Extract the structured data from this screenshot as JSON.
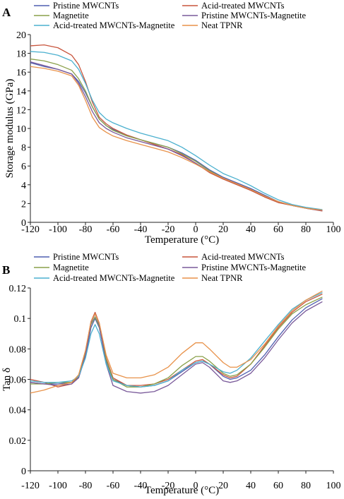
{
  "chart_data": [
    {
      "type": "line",
      "panel_label": "A",
      "xlabel": "Temperature (°C)",
      "ylabel": "Storage modulus (GPa)",
      "xlim": [
        -120,
        100
      ],
      "ylim": [
        0,
        20
      ],
      "xticks": [
        -120,
        -100,
        -80,
        -60,
        -40,
        -20,
        0,
        20,
        40,
        60,
        80,
        100
      ],
      "yticks": [
        0,
        2,
        4,
        6,
        8,
        10,
        12,
        14,
        16,
        18,
        20
      ],
      "grid": false,
      "legend_position": "top",
      "series": [
        {
          "name": "Pristine MWCNTs",
          "color": "#4f5fb0",
          "x": [
            -120,
            -110,
            -100,
            -90,
            -85,
            -80,
            -75,
            -70,
            -65,
            -60,
            -50,
            -40,
            -30,
            -20,
            -10,
            0,
            10,
            20,
            30,
            40,
            50,
            60,
            70,
            80,
            92
          ],
          "y": [
            17.0,
            16.6,
            16.3,
            15.8,
            15.0,
            13.8,
            12.3,
            11.0,
            10.3,
            9.9,
            9.3,
            8.8,
            8.4,
            8.0,
            7.4,
            6.6,
            5.6,
            4.8,
            4.2,
            3.6,
            2.9,
            2.2,
            1.8,
            1.5,
            1.25
          ]
        },
        {
          "name": "Acid-treated MWCNTs",
          "color": "#c8553d",
          "x": [
            -120,
            -110,
            -100,
            -90,
            -85,
            -80,
            -75,
            -70,
            -65,
            -60,
            -50,
            -40,
            -30,
            -20,
            -10,
            0,
            10,
            20,
            30,
            40,
            50,
            60,
            70,
            80,
            92
          ],
          "y": [
            18.8,
            18.9,
            18.6,
            17.8,
            16.8,
            15.0,
            12.8,
            11.2,
            10.5,
            10.0,
            9.3,
            8.8,
            8.3,
            7.8,
            7.2,
            6.3,
            5.3,
            4.6,
            4.0,
            3.4,
            2.7,
            2.1,
            1.8,
            1.5,
            1.2
          ]
        },
        {
          "name": "Magnetite",
          "color": "#8aa04a",
          "x": [
            -120,
            -110,
            -100,
            -90,
            -85,
            -80,
            -75,
            -70,
            -65,
            -60,
            -50,
            -40,
            -30,
            -20,
            -10,
            0,
            10,
            20,
            30,
            40,
            50,
            60,
            70,
            80,
            92
          ],
          "y": [
            17.4,
            17.2,
            16.8,
            16.2,
            15.3,
            14.0,
            12.3,
            11.0,
            10.3,
            9.8,
            9.2,
            8.8,
            8.4,
            8.0,
            7.3,
            6.5,
            5.5,
            4.7,
            4.1,
            3.5,
            2.8,
            2.2,
            1.8,
            1.5,
            1.3
          ]
        },
        {
          "name": "Pristine MWCNTs-Magnetite",
          "color": "#7a5a9a",
          "x": [
            -120,
            -110,
            -100,
            -90,
            -85,
            -80,
            -75,
            -70,
            -65,
            -60,
            -50,
            -40,
            -30,
            -20,
            -10,
            0,
            10,
            20,
            30,
            40,
            50,
            60,
            70,
            80,
            92
          ],
          "y": [
            17.1,
            16.7,
            16.3,
            15.8,
            14.8,
            13.4,
            11.8,
            10.6,
            10.0,
            9.6,
            9.0,
            8.6,
            8.2,
            7.8,
            7.1,
            6.3,
            5.4,
            4.7,
            4.1,
            3.5,
            2.8,
            2.2,
            1.8,
            1.5,
            1.25
          ]
        },
        {
          "name": "Acid-treated MWCNTs-Magnetite",
          "color": "#4bb0cf",
          "x": [
            -120,
            -110,
            -100,
            -90,
            -85,
            -80,
            -75,
            -70,
            -65,
            -60,
            -50,
            -40,
            -30,
            -20,
            -10,
            0,
            10,
            20,
            30,
            40,
            50,
            60,
            70,
            80,
            92
          ],
          "y": [
            18.2,
            18.1,
            17.8,
            17.2,
            16.3,
            14.8,
            13.0,
            11.7,
            11.0,
            10.6,
            10.0,
            9.5,
            9.1,
            8.7,
            8.0,
            7.1,
            6.1,
            5.2,
            4.6,
            3.9,
            3.1,
            2.4,
            1.9,
            1.6,
            1.35
          ]
        },
        {
          "name": "Neat TPNR",
          "color": "#e8924a",
          "x": [
            -120,
            -110,
            -100,
            -90,
            -85,
            -80,
            -75,
            -70,
            -65,
            -60,
            -50,
            -40,
            -30,
            -20,
            -10,
            0,
            10,
            20,
            30,
            40,
            50,
            60,
            70,
            80,
            92
          ],
          "y": [
            16.6,
            16.4,
            16.1,
            15.6,
            14.6,
            13.0,
            11.2,
            10.1,
            9.6,
            9.2,
            8.7,
            8.3,
            7.9,
            7.5,
            6.9,
            6.2,
            5.4,
            4.7,
            4.1,
            3.5,
            2.8,
            2.2,
            1.8,
            1.5,
            1.3
          ]
        }
      ]
    },
    {
      "type": "line",
      "panel_label": "B",
      "xlabel": "Temperature (°C)",
      "ylabel": "Tan δ",
      "xlim": [
        -120,
        100
      ],
      "ylim": [
        0,
        0.12
      ],
      "xticks": [
        -120,
        -100,
        -80,
        -60,
        -40,
        -20,
        0,
        20,
        40,
        60,
        80,
        100
      ],
      "yticks": [
        0,
        0.02,
        0.04,
        0.06,
        0.08,
        0.1,
        0.12
      ],
      "grid": false,
      "legend_position": "top",
      "series": [
        {
          "name": "Pristine MWCNTs",
          "color": "#4f5fb0",
          "x": [
            -120,
            -110,
            -100,
            -90,
            -85,
            -80,
            -76,
            -73,
            -70,
            -65,
            -60,
            -50,
            -40,
            -30,
            -20,
            -10,
            0,
            5,
            10,
            20,
            25,
            30,
            40,
            50,
            60,
            70,
            80,
            92
          ],
          "y": [
            0.058,
            0.057,
            0.057,
            0.058,
            0.061,
            0.075,
            0.094,
            0.1,
            0.094,
            0.072,
            0.06,
            0.056,
            0.055,
            0.056,
            0.059,
            0.065,
            0.071,
            0.072,
            0.07,
            0.062,
            0.06,
            0.061,
            0.066,
            0.076,
            0.088,
            0.099,
            0.107,
            0.113
          ]
        },
        {
          "name": "Acid-treated MWCNTs",
          "color": "#c8553d",
          "x": [
            -120,
            -110,
            -100,
            -90,
            -85,
            -80,
            -76,
            -73,
            -70,
            -65,
            -60,
            -50,
            -40,
            -30,
            -20,
            -10,
            0,
            5,
            10,
            20,
            25,
            30,
            40,
            50,
            60,
            70,
            80,
            92
          ],
          "y": [
            0.06,
            0.058,
            0.055,
            0.057,
            0.062,
            0.078,
            0.098,
            0.104,
            0.097,
            0.074,
            0.061,
            0.056,
            0.056,
            0.057,
            0.06,
            0.066,
            0.072,
            0.073,
            0.07,
            0.063,
            0.061,
            0.062,
            0.07,
            0.082,
            0.094,
            0.104,
            0.111,
            0.116
          ]
        },
        {
          "name": "Magnetite",
          "color": "#8aa04a",
          "x": [
            -120,
            -110,
            -100,
            -90,
            -85,
            -80,
            -76,
            -73,
            -70,
            -65,
            -60,
            -50,
            -40,
            -30,
            -20,
            -10,
            0,
            5,
            10,
            20,
            25,
            30,
            40,
            50,
            60,
            70,
            80,
            92
          ],
          "y": [
            0.057,
            0.057,
            0.058,
            0.058,
            0.062,
            0.077,
            0.096,
            0.101,
            0.095,
            0.073,
            0.06,
            0.055,
            0.055,
            0.057,
            0.061,
            0.069,
            0.075,
            0.075,
            0.072,
            0.064,
            0.062,
            0.063,
            0.07,
            0.081,
            0.093,
            0.103,
            0.109,
            0.114
          ]
        },
        {
          "name": "Pristine MWCNTs-Magnetite",
          "color": "#7a5a9a",
          "x": [
            -120,
            -110,
            -100,
            -90,
            -85,
            -80,
            -76,
            -73,
            -70,
            -65,
            -60,
            -50,
            -40,
            -30,
            -20,
            -10,
            0,
            5,
            10,
            20,
            25,
            30,
            40,
            50,
            60,
            70,
            80,
            92
          ],
          "y": [
            0.058,
            0.057,
            0.056,
            0.057,
            0.061,
            0.076,
            0.097,
            0.103,
            0.096,
            0.07,
            0.056,
            0.052,
            0.051,
            0.052,
            0.056,
            0.063,
            0.07,
            0.071,
            0.068,
            0.059,
            0.058,
            0.059,
            0.064,
            0.074,
            0.086,
            0.097,
            0.105,
            0.111
          ]
        },
        {
          "name": "Acid-treated MWCNTs-Magnetite",
          "color": "#4bb0cf",
          "x": [
            -120,
            -110,
            -100,
            -90,
            -85,
            -80,
            -76,
            -73,
            -70,
            -65,
            -60,
            -50,
            -40,
            -30,
            -20,
            -10,
            0,
            5,
            10,
            20,
            25,
            30,
            40,
            50,
            60,
            70,
            80,
            92
          ],
          "y": [
            0.059,
            0.058,
            0.058,
            0.059,
            0.062,
            0.074,
            0.09,
            0.096,
            0.09,
            0.07,
            0.059,
            0.056,
            0.055,
            0.056,
            0.059,
            0.066,
            0.071,
            0.072,
            0.07,
            0.065,
            0.064,
            0.066,
            0.074,
            0.085,
            0.096,
            0.106,
            0.112,
            0.117
          ]
        },
        {
          "name": "Neat TPNR",
          "color": "#e8924a",
          "x": [
            -120,
            -110,
            -100,
            -90,
            -85,
            -80,
            -76,
            -73,
            -70,
            -65,
            -60,
            -50,
            -40,
            -30,
            -20,
            -10,
            0,
            5,
            10,
            20,
            25,
            30,
            40,
            50,
            60,
            70,
            80,
            92
          ],
          "y": [
            0.051,
            0.053,
            0.056,
            0.058,
            0.063,
            0.079,
            0.098,
            0.103,
            0.097,
            0.076,
            0.064,
            0.061,
            0.061,
            0.063,
            0.068,
            0.077,
            0.084,
            0.084,
            0.08,
            0.071,
            0.068,
            0.068,
            0.073,
            0.083,
            0.095,
            0.105,
            0.112,
            0.118
          ]
        }
      ]
    }
  ]
}
